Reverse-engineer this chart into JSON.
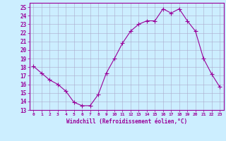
{
  "x": [
    0,
    1,
    2,
    3,
    4,
    5,
    6,
    7,
    8,
    9,
    10,
    11,
    12,
    13,
    14,
    15,
    16,
    17,
    18,
    19,
    20,
    21,
    22,
    23
  ],
  "y": [
    18.1,
    17.3,
    16.5,
    16.0,
    15.2,
    13.9,
    13.5,
    13.5,
    14.8,
    17.3,
    19.0,
    20.8,
    22.2,
    23.0,
    23.4,
    23.4,
    24.8,
    24.3,
    24.8,
    23.4,
    22.2,
    19.0,
    17.2,
    15.7
  ],
  "line_color": "#990099",
  "marker": "+",
  "marker_size": 4,
  "bg_color": "#cceeff",
  "grid_color": "#aaaacc",
  "xlabel": "Windchill (Refroidissement éolien,°C)",
  "ylabel_ticks": [
    13,
    14,
    15,
    16,
    17,
    18,
    19,
    20,
    21,
    22,
    23,
    24,
    25
  ],
  "xlim": [
    -0.5,
    23.5
  ],
  "ylim": [
    13,
    25.5
  ],
  "xticks": [
    0,
    1,
    2,
    3,
    4,
    5,
    6,
    7,
    8,
    9,
    10,
    11,
    12,
    13,
    14,
    15,
    16,
    17,
    18,
    19,
    20,
    21,
    22,
    23
  ],
  "xtick_labels": [
    "0",
    "1",
    "2",
    "3",
    "4",
    "5",
    "6",
    "7",
    "8",
    "9",
    "10",
    "11",
    "12",
    "13",
    "14",
    "15",
    "16",
    "17",
    "18",
    "19",
    "20",
    "21",
    "22",
    "23"
  ]
}
